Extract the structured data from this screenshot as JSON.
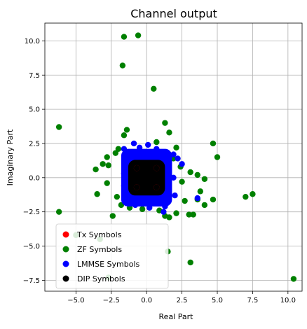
{
  "chart_data": {
    "type": "scatter",
    "title": "Channel output",
    "xlabel": "Real Part",
    "ylabel": "Imaginary Part",
    "xlim": [
      -7.2,
      11.0
    ],
    "ylim": [
      -8.3,
      11.3
    ],
    "xticks": [
      -5.0,
      -2.5,
      0.0,
      2.5,
      5.0,
      7.5,
      10.0
    ],
    "xtick_labels": [
      "−5.0",
      "−2.5",
      "0.0",
      "2.5",
      "5.0",
      "7.5",
      "10.0"
    ],
    "yticks": [
      -7.5,
      -5.0,
      -2.5,
      0.0,
      2.5,
      5.0,
      7.5,
      10.0
    ],
    "ytick_labels": [
      "−7.5",
      "−5.0",
      "−2.5",
      "0.0",
      "2.5",
      "5.0",
      "7.5",
      "10.0"
    ],
    "grid": true,
    "legend_position": "lower-left",
    "series": [
      {
        "name": "Tx Symbols",
        "color": "#ff0000",
        "points": [
          [
            -0.7,
            -0.7
          ],
          [
            -0.7,
            0.7
          ],
          [
            0.7,
            -0.7
          ],
          [
            0.7,
            0.7
          ]
        ]
      },
      {
        "name": "ZF Symbols",
        "color": "#008000",
        "points": [
          [
            -1.6,
            10.3
          ],
          [
            -0.6,
            10.4
          ],
          [
            -1.7,
            8.2
          ],
          [
            0.5,
            6.5
          ],
          [
            -6.2,
            3.7
          ],
          [
            1.3,
            4.0
          ],
          [
            4.7,
            2.5
          ],
          [
            -1.6,
            3.1
          ],
          [
            -1.4,
            3.5
          ],
          [
            1.6,
            3.3
          ],
          [
            0.7,
            2.6
          ],
          [
            2.1,
            2.2
          ],
          [
            -2.8,
            1.5
          ],
          [
            -3.1,
            1.0
          ],
          [
            -3.6,
            0.6
          ],
          [
            -2.2,
            1.8
          ],
          [
            -2.0,
            2.1
          ],
          [
            -2.7,
            0.9
          ],
          [
            3.1,
            0.4
          ],
          [
            3.6,
            0.2
          ],
          [
            4.1,
            -0.1
          ],
          [
            5.0,
            1.5
          ],
          [
            2.5,
            -0.3
          ],
          [
            3.8,
            -1.0
          ],
          [
            3.6,
            -1.6
          ],
          [
            4.7,
            -1.6
          ],
          [
            4.1,
            -2.0
          ],
          [
            7.0,
            -1.4
          ],
          [
            7.5,
            -1.2
          ],
          [
            10.4,
            -7.4
          ],
          [
            -6.2,
            -2.5
          ],
          [
            -3.5,
            -1.2
          ],
          [
            -2.8,
            -0.4
          ],
          [
            -2.1,
            -1.4
          ],
          [
            -1.8,
            -2.0
          ],
          [
            -2.4,
            -2.8
          ],
          [
            -0.3,
            -2.3
          ],
          [
            0.4,
            -1.9
          ],
          [
            1.3,
            -2.8
          ],
          [
            1.6,
            -2.9
          ],
          [
            2.1,
            -2.6
          ],
          [
            3.0,
            -2.7
          ],
          [
            3.3,
            -2.7
          ],
          [
            2.7,
            -1.7
          ],
          [
            -5.0,
            -4.2
          ],
          [
            -3.3,
            -4.5
          ],
          [
            -2.7,
            -7.3
          ],
          [
            1.5,
            -5.4
          ],
          [
            3.1,
            -6.2
          ],
          [
            -0.9,
            1.8
          ],
          [
            1.9,
            1.4
          ],
          [
            2.4,
            0.8
          ],
          [
            -1.2,
            -2.2
          ],
          [
            0.9,
            -2.4
          ]
        ]
      },
      {
        "name": "LMMSE Symbols",
        "color": "#0000ff",
        "points": [
          [
            -0.9,
            2.5
          ],
          [
            0.1,
            2.4
          ],
          [
            -0.5,
            2.2
          ],
          [
            2.2,
            1.4
          ],
          [
            2.5,
            1.0
          ],
          [
            -1.4,
            1.2
          ],
          [
            -1.6,
            0.3
          ],
          [
            -1.6,
            -0.6
          ],
          [
            -1.4,
            -1.3
          ],
          [
            -0.8,
            -2.0
          ],
          [
            0.2,
            -2.2
          ],
          [
            1.3,
            -2.1
          ],
          [
            2.0,
            -1.3
          ],
          [
            1.9,
            0.0
          ],
          [
            1.6,
            1.6
          ],
          [
            0.7,
            2.1
          ],
          [
            -1.1,
            1.7
          ],
          [
            3.6,
            -1.5
          ],
          [
            -1.6,
            2.1
          ],
          [
            1.9,
            1.7
          ],
          [
            1.2,
            -2.5
          ]
        ]
      },
      {
        "name": "DIP Symbols",
        "color": "#000000",
        "points": [
          [
            -0.7,
            -0.7
          ],
          [
            -0.7,
            0.7
          ],
          [
            0.7,
            -0.7
          ],
          [
            0.7,
            0.7
          ]
        ]
      }
    ],
    "clouds": [
      {
        "series": "LMMSE Symbols",
        "center": [
          0.0,
          0.0
        ],
        "half_width": 1.6,
        "half_height": 1.9
      },
      {
        "series": "DIP Symbols",
        "center": [
          0.0,
          0.0
        ],
        "half_width": 1.1,
        "half_height": 1.1
      }
    ]
  }
}
